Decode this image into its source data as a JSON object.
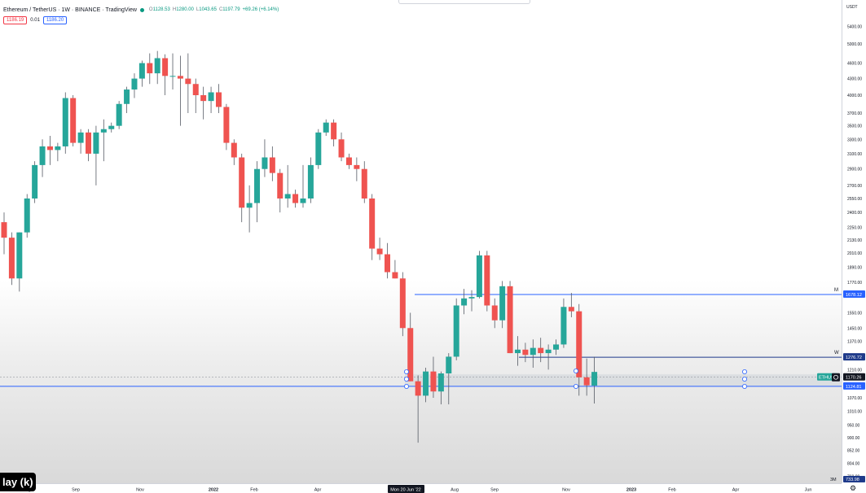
{
  "header": {
    "symbol": "Ethereum / TetherUS · 1W · BINANCE · TradingView",
    "ohlc": {
      "open_label": "O",
      "open": "1128.53",
      "high_label": "H",
      "high": "1280.00",
      "low_label": "L",
      "low": "1043.65",
      "close_label": "C",
      "close": "1197.79",
      "change": "+69.26 (+6.14%)"
    },
    "sell_price": "1186.19",
    "spread": "0.01",
    "buy_price": "1186.20"
  },
  "currency_label": "USDT",
  "playback_label": "lay (k)",
  "colors": {
    "bull": "#26a69a",
    "bear": "#ef5350",
    "line_blue": "#2962ff",
    "line_navy": "#1e3a8a",
    "zone": "#d6d9de"
  },
  "chart_data": {
    "type": "candlestick",
    "title": "Ethereum / TetherUS",
    "interval": "1W",
    "y_scale": "log",
    "ylim": [
      733.98,
      5800
    ],
    "price_ticks": [
      5400,
      5000,
      4600,
      4300,
      4000,
      3700,
      3500,
      3300,
      3100,
      2900,
      2700,
      2550,
      2400,
      2250,
      2130,
      2010,
      1890,
      1770,
      1550,
      1450,
      1370,
      1210,
      1070,
      1010,
      950,
      900,
      852,
      804,
      760
    ],
    "price_tick_labels": [
      "5400.00",
      "5000.00",
      "4600.00",
      "4300.00",
      "4000.00",
      "3700.00",
      "3500.00",
      "3300.00",
      "3100.00",
      "2900.00",
      "2700.00",
      "2550.00",
      "2400.00",
      "2250.00",
      "2130.00",
      "2010.00",
      "1890.00",
      "1770.00",
      "1550.00",
      "1450.00",
      "1370.00",
      "1210.00",
      "1070.00",
      "1010.00",
      "950.00",
      "900.00",
      "852.00",
      "804.00",
      "760.00"
    ],
    "time_labels": [
      "Aug",
      "Sep",
      "Nov",
      "2022",
      "Feb",
      "Apr",
      "Mon 20 Jun '22",
      "Aug",
      "Sep",
      "Nov",
      "2023",
      "Feb",
      "Apr",
      "Jun"
    ],
    "horizontal_lines": [
      {
        "price": 1678.12,
        "label": "1678.12",
        "tag": "M",
        "style": "blue"
      },
      {
        "price": 1276.72,
        "label": "1276.72",
        "tag": "W",
        "style": "navy"
      },
      {
        "price": 1124.81,
        "label": "1124.81",
        "tag": "",
        "style": "blue"
      }
    ],
    "current_price": {
      "price": 1170.26,
      "label": "1170.26",
      "ticker": "ETHUS"
    },
    "scale_bottom_label": "733.98",
    "scale_bottom_tag": "3M",
    "zone": {
      "top": 1185,
      "bottom": 1124.81
    },
    "candles": [
      {
        "o": 2300,
        "h": 2400,
        "l": 2000,
        "c": 2150
      },
      {
        "o": 2150,
        "h": 2200,
        "l": 1750,
        "c": 1800
      },
      {
        "o": 1800,
        "h": 2200,
        "l": 1700,
        "c": 2200
      },
      {
        "o": 2200,
        "h": 2600,
        "l": 2150,
        "c": 2550
      },
      {
        "o": 2550,
        "h": 3000,
        "l": 2500,
        "c": 2950
      },
      {
        "o": 2950,
        "h": 3300,
        "l": 2800,
        "c": 3200
      },
      {
        "o": 3200,
        "h": 3350,
        "l": 2950,
        "c": 3150
      },
      {
        "o": 3150,
        "h": 3250,
        "l": 3000,
        "c": 3200
      },
      {
        "o": 3200,
        "h": 4050,
        "l": 3100,
        "c": 3950
      },
      {
        "o": 3950,
        "h": 4000,
        "l": 3200,
        "c": 3250
      },
      {
        "o": 3250,
        "h": 3450,
        "l": 3100,
        "c": 3400
      },
      {
        "o": 3400,
        "h": 3450,
        "l": 3000,
        "c": 3100
      },
      {
        "o": 3100,
        "h": 3500,
        "l": 2700,
        "c": 3400
      },
      {
        "o": 3400,
        "h": 3600,
        "l": 3000,
        "c": 3450
      },
      {
        "o": 3450,
        "h": 3550,
        "l": 3400,
        "c": 3500
      },
      {
        "o": 3500,
        "h": 3900,
        "l": 3450,
        "c": 3850
      },
      {
        "o": 3850,
        "h": 4150,
        "l": 3700,
        "c": 4100
      },
      {
        "o": 4100,
        "h": 4400,
        "l": 3950,
        "c": 4300
      },
      {
        "o": 4300,
        "h": 4650,
        "l": 4150,
        "c": 4600
      },
      {
        "o": 4600,
        "h": 4800,
        "l": 4200,
        "c": 4400
      },
      {
        "o": 4400,
        "h": 4850,
        "l": 4200,
        "c": 4700
      },
      {
        "o": 4700,
        "h": 4780,
        "l": 4000,
        "c": 4350
      },
      {
        "o": 4350,
        "h": 4800,
        "l": 4100,
        "c": 4350
      },
      {
        "o": 4350,
        "h": 4750,
        "l": 3500,
        "c": 4300
      },
      {
        "o": 4300,
        "h": 4800,
        "l": 3700,
        "c": 4200
      },
      {
        "o": 4200,
        "h": 4300,
        "l": 3700,
        "c": 4000
      },
      {
        "o": 4000,
        "h": 4150,
        "l": 3600,
        "c": 3900
      },
      {
        "o": 3900,
        "h": 4150,
        "l": 3700,
        "c": 4050
      },
      {
        "o": 4050,
        "h": 4200,
        "l": 3700,
        "c": 3800
      },
      {
        "o": 3800,
        "h": 3850,
        "l": 3150,
        "c": 3250
      },
      {
        "o": 3250,
        "h": 3300,
        "l": 2950,
        "c": 3050
      },
      {
        "o": 3050,
        "h": 3100,
        "l": 2300,
        "c": 2450
      },
      {
        "o": 2450,
        "h": 2700,
        "l": 2200,
        "c": 2500
      },
      {
        "o": 2500,
        "h": 3000,
        "l": 2300,
        "c": 2900
      },
      {
        "o": 2900,
        "h": 3300,
        "l": 2800,
        "c": 3050
      },
      {
        "o": 3050,
        "h": 3200,
        "l": 2750,
        "c": 2850
      },
      {
        "o": 2850,
        "h": 2900,
        "l": 2400,
        "c": 2550
      },
      {
        "o": 2550,
        "h": 2950,
        "l": 2450,
        "c": 2600
      },
      {
        "o": 2600,
        "h": 2650,
        "l": 2450,
        "c": 2500
      },
      {
        "o": 2500,
        "h": 2950,
        "l": 2450,
        "c": 2550
      },
      {
        "o": 2550,
        "h": 3050,
        "l": 2500,
        "c": 2950
      },
      {
        "o": 2950,
        "h": 3450,
        "l": 2900,
        "c": 3400
      },
      {
        "o": 3400,
        "h": 3600,
        "l": 3350,
        "c": 3550
      },
      {
        "o": 3550,
        "h": 3600,
        "l": 3200,
        "c": 3300
      },
      {
        "o": 3300,
        "h": 3400,
        "l": 3000,
        "c": 3050
      },
      {
        "o": 3050,
        "h": 3100,
        "l": 2900,
        "c": 2950
      },
      {
        "o": 2950,
        "h": 3050,
        "l": 2750,
        "c": 2900
      },
      {
        "o": 2900,
        "h": 3000,
        "l": 2500,
        "c": 2550
      },
      {
        "o": 2550,
        "h": 2600,
        "l": 1950,
        "c": 2050
      },
      {
        "o": 2050,
        "h": 2150,
        "l": 1950,
        "c": 2000
      },
      {
        "o": 2000,
        "h": 2100,
        "l": 1800,
        "c": 1850
      },
      {
        "o": 1850,
        "h": 1950,
        "l": 1800,
        "c": 1800
      },
      {
        "o": 1800,
        "h": 1850,
        "l": 1400,
        "c": 1450
      },
      {
        "o": 1450,
        "h": 1550,
        "l": 1150,
        "c": 1150
      },
      {
        "o": 1150,
        "h": 1180,
        "l": 880,
        "c": 1080
      },
      {
        "o": 1080,
        "h": 1220,
        "l": 1050,
        "c": 1200
      },
      {
        "o": 1200,
        "h": 1280,
        "l": 1070,
        "c": 1100
      },
      {
        "o": 1100,
        "h": 1200,
        "l": 1040,
        "c": 1190
      },
      {
        "o": 1190,
        "h": 1300,
        "l": 1040,
        "c": 1280
      },
      {
        "o": 1280,
        "h": 1650,
        "l": 1260,
        "c": 1600
      },
      {
        "o": 1600,
        "h": 1720,
        "l": 1540,
        "c": 1650
      },
      {
        "o": 1650,
        "h": 1710,
        "l": 1560,
        "c": 1660
      },
      {
        "o": 1660,
        "h": 2030,
        "l": 1650,
        "c": 1990
      },
      {
        "o": 1990,
        "h": 2030,
        "l": 1560,
        "c": 1600
      },
      {
        "o": 1600,
        "h": 1650,
        "l": 1450,
        "c": 1500
      },
      {
        "o": 1500,
        "h": 1780,
        "l": 1450,
        "c": 1740
      },
      {
        "o": 1740,
        "h": 1780,
        "l": 1300,
        "c": 1300
      },
      {
        "o": 1300,
        "h": 1400,
        "l": 1230,
        "c": 1320
      },
      {
        "o": 1320,
        "h": 1360,
        "l": 1250,
        "c": 1290
      },
      {
        "o": 1290,
        "h": 1380,
        "l": 1220,
        "c": 1330
      },
      {
        "o": 1330,
        "h": 1390,
        "l": 1250,
        "c": 1300
      },
      {
        "o": 1300,
        "h": 1350,
        "l": 1210,
        "c": 1320
      },
      {
        "o": 1320,
        "h": 1380,
        "l": 1290,
        "c": 1350
      },
      {
        "o": 1350,
        "h": 1650,
        "l": 1330,
        "c": 1590
      },
      {
        "o": 1590,
        "h": 1690,
        "l": 1520,
        "c": 1560
      },
      {
        "o": 1560,
        "h": 1610,
        "l": 1080,
        "c": 1170
      },
      {
        "o": 1170,
        "h": 1270,
        "l": 1080,
        "c": 1130
      },
      {
        "o": 1128.53,
        "h": 1280,
        "l": 1043.65,
        "c": 1197.79
      }
    ]
  }
}
